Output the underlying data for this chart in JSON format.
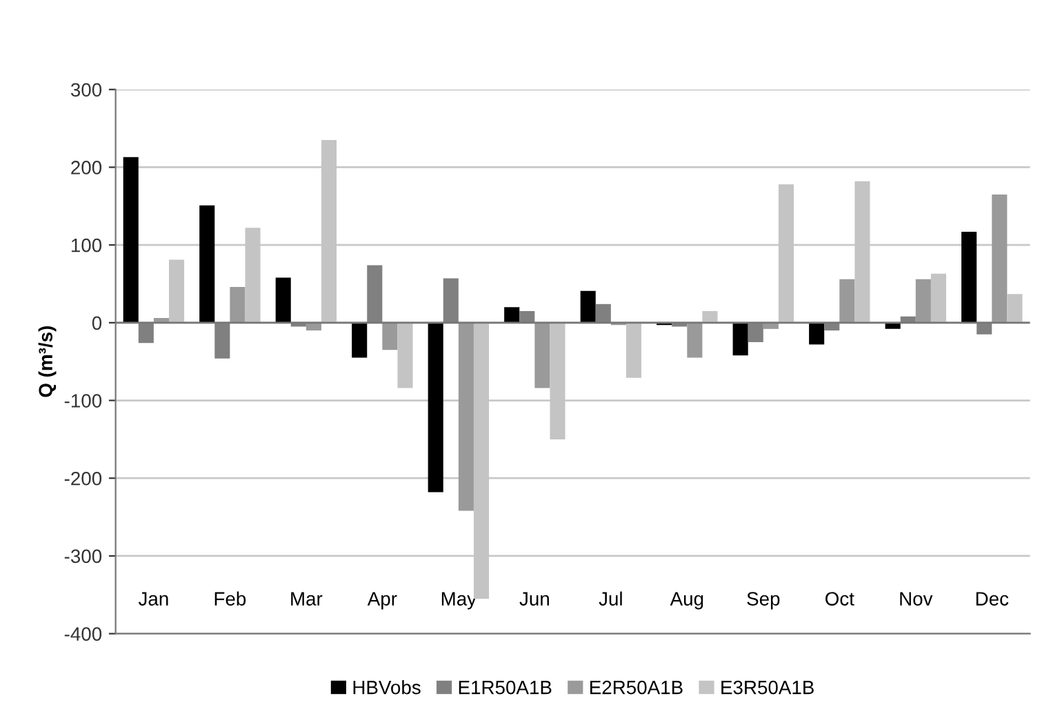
{
  "chart_data": {
    "type": "bar",
    "ylabel": "Q (m³/s)",
    "categories": [
      "Jan",
      "Feb",
      "Mar",
      "Apr",
      "May",
      "Jun",
      "Jul",
      "Aug",
      "Sep",
      "Oct",
      "Nov",
      "Dec"
    ],
    "series": [
      {
        "name": "HBVobs",
        "color": "#000000",
        "values": [
          213,
          151,
          58,
          -45,
          -218,
          20,
          41,
          -3,
          -42,
          -28,
          -8,
          117
        ]
      },
      {
        "name": "E1R50A1B",
        "color": "#808080",
        "values": [
          -26,
          -46,
          -5,
          74,
          57,
          15,
          24,
          -5,
          -25,
          -10,
          8,
          -15
        ]
      },
      {
        "name": "E2R50A1B",
        "color": "#9a9a9a",
        "values": [
          6,
          46,
          -10,
          -35,
          -242,
          -84,
          -3,
          -45,
          -8,
          56,
          56,
          165
        ]
      },
      {
        "name": "E3R50A1B",
        "color": "#c4c4c4",
        "values": [
          81,
          122,
          235,
          -84,
          -355,
          -150,
          -71,
          15,
          178,
          182,
          63,
          37
        ]
      }
    ],
    "ylim": [
      -400,
      300
    ],
    "yticks": [
      -400,
      -300,
      -200,
      -100,
      0,
      100,
      200,
      300
    ],
    "grid": "y",
    "legend": "bottom"
  }
}
